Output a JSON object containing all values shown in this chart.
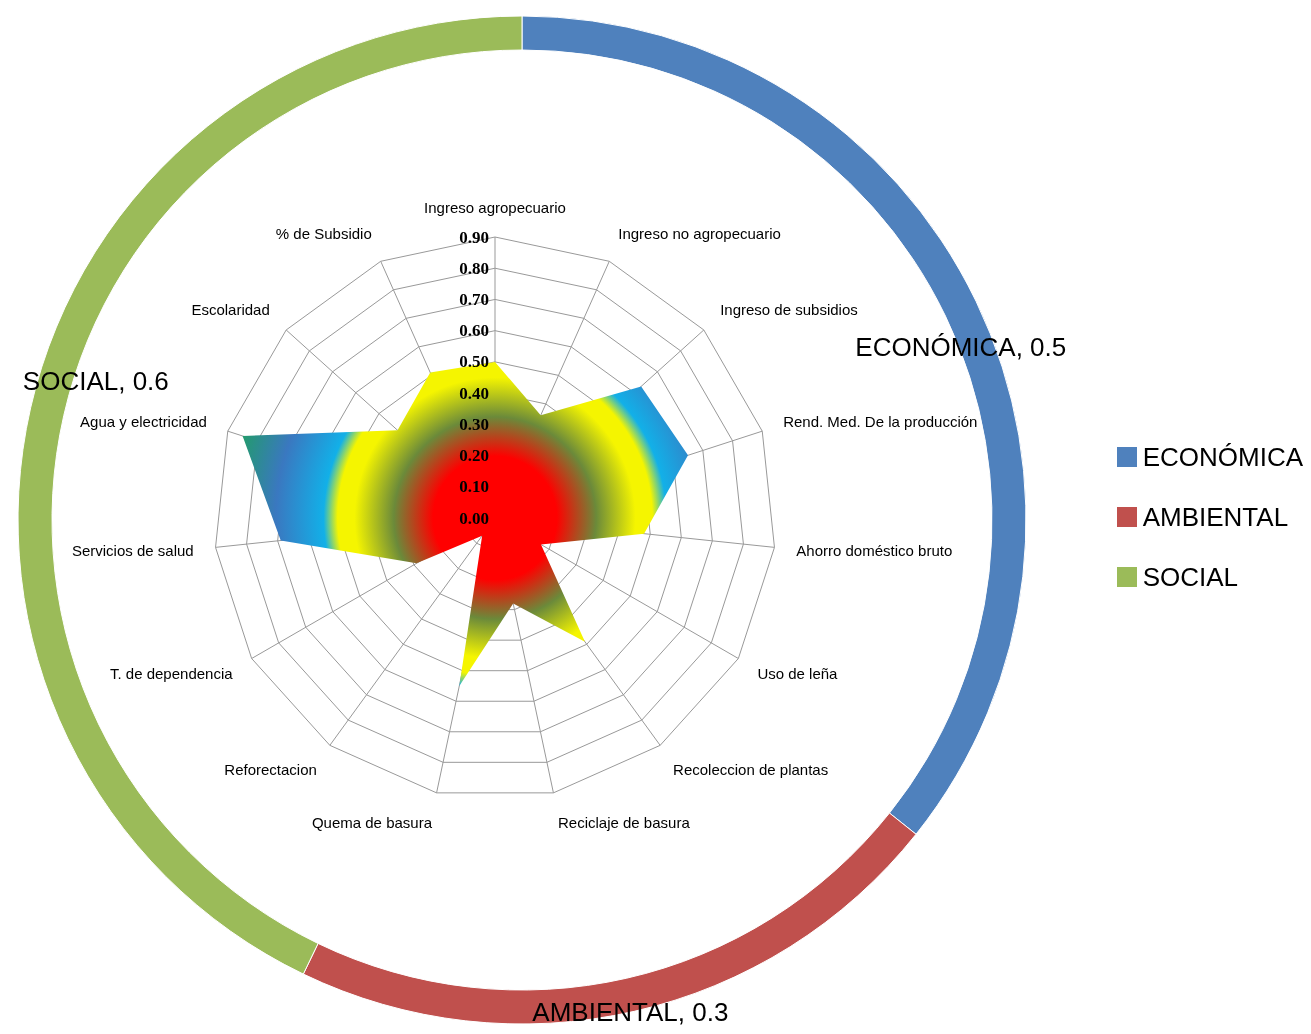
{
  "chart_data": [
    {
      "type": "donut",
      "categories": [
        "ECONÓMICA",
        "AMBIENTAL",
        "SOCIAL"
      ],
      "values": [
        0.5,
        0.3,
        0.6
      ],
      "colors": [
        "#4f81bd",
        "#c0504d",
        "#9bbb59"
      ],
      "value_labels": [
        "ECONÓMICA, 0.5",
        "AMBIENTAL, 0.3",
        "SOCIAL, 0.6"
      ],
      "legend": "right"
    },
    {
      "type": "radar",
      "categories": [
        "Ingreso agropecuario",
        "Ingreso no agropecuario",
        "Ingreso de subsidios",
        "Rend. Med. De la producción",
        "Ahorro doméstico bruto",
        "Uso de leña",
        "Recoleccion de plantas",
        "Reciclaje de basura",
        "Quema de basura",
        "Reforectacion",
        "T. de dependencia",
        "Servicios de salud",
        "Agua y electricidad",
        "Escolaridad",
        "% de Subsidio"
      ],
      "series": [
        {
          "values": [
            0.5,
            0.36,
            0.63,
            0.65,
            0.48,
            0.17,
            0.49,
            0.28,
            0.55,
            0.07,
            0.29,
            0.69,
            0.85,
            0.42,
            0.51
          ]
        }
      ],
      "ylim": [
        0,
        0.9
      ],
      "yticks": [
        {
          "value": 0,
          "label": "0.00"
        },
        {
          "value": 0.1,
          "label": "0.10"
        },
        {
          "value": 0.2,
          "label": "0.20"
        },
        {
          "value": 0.3,
          "label": "0.30"
        },
        {
          "value": 0.4,
          "label": "0.40"
        },
        {
          "value": 0.5,
          "label": "0.50"
        },
        {
          "value": 0.6,
          "label": "0.60"
        },
        {
          "value": 0.7,
          "label": "0.70"
        },
        {
          "value": 0.8,
          "label": "0.80"
        },
        {
          "value": 0.9,
          "label": "0.90"
        }
      ],
      "grid": true
    }
  ]
}
